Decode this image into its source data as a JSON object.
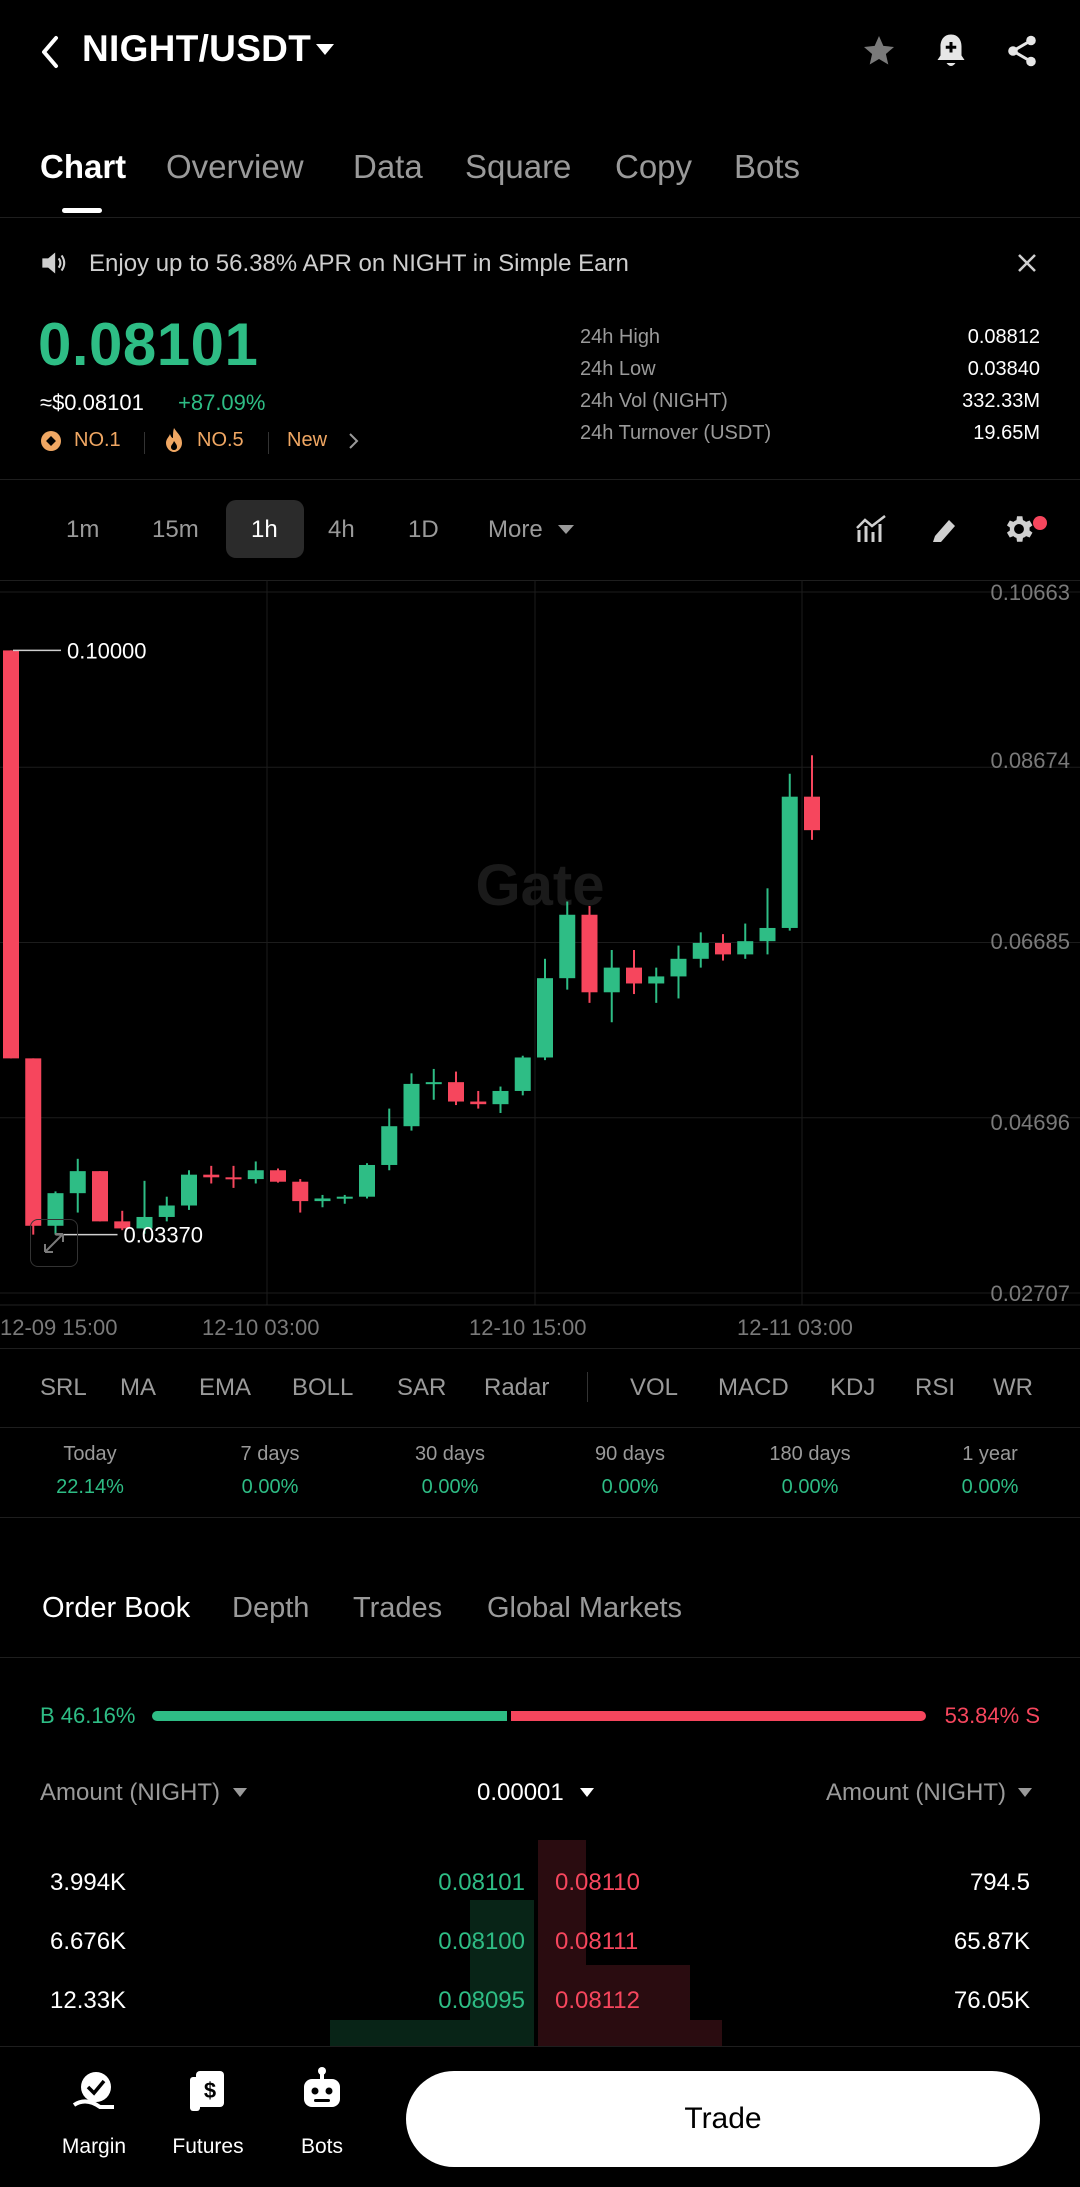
{
  "header": {
    "pair": "NIGHT/USDT"
  },
  "tabs": [
    "Chart",
    "Overview",
    "Data",
    "Square",
    "Copy",
    "Bots"
  ],
  "banner": {
    "text": "Enjoy up to 56.38% APR on NIGHT in Simple Earn"
  },
  "ticker": {
    "price": "0.08101",
    "usd_price": "≈$0.08101",
    "change": "+87.09%",
    "badge1": "NO.1",
    "badge2": "NO.5",
    "badge3": "New",
    "stats": [
      {
        "label": "24h High",
        "value": "0.08812"
      },
      {
        "label": "24h Low",
        "value": "0.03840"
      },
      {
        "label": "24h Vol (NIGHT)",
        "value": "332.33M"
      },
      {
        "label": "24h Turnover (USDT)",
        "value": "19.65M"
      }
    ]
  },
  "timeframes": [
    "1m",
    "15m",
    "1h",
    "4h",
    "1D",
    "More"
  ],
  "selected_timeframe": "1h",
  "chart_data": {
    "type": "candlestick",
    "y_ticks": [
      "0.10663",
      "0.08674",
      "0.06685",
      "0.04696",
      "0.02707"
    ],
    "x_ticks": [
      "12-09 15:00",
      "12-10 03:00",
      "12-10 15:00",
      "12-11 03:00"
    ],
    "ylim": [
      0.02707,
      0.10663
    ],
    "annotations": {
      "high": "0.10000",
      "low": "0.03370"
    },
    "watermark": "Gate",
    "candles": [
      [
        0.1,
        0.1,
        0.0537,
        0.0537
      ],
      [
        0.0537,
        0.0537,
        0.0337,
        0.0347
      ],
      [
        0.0347,
        0.0386,
        0.0337,
        0.0384
      ],
      [
        0.0384,
        0.0423,
        0.0362,
        0.0409
      ],
      [
        0.0409,
        0.0409,
        0.0352,
        0.0352
      ],
      [
        0.0352,
        0.0364,
        0.0342,
        0.0344
      ],
      [
        0.0344,
        0.0398,
        0.0338,
        0.0357
      ],
      [
        0.0357,
        0.038,
        0.0352,
        0.037
      ],
      [
        0.037,
        0.041,
        0.0365,
        0.0405
      ],
      [
        0.0405,
        0.0415,
        0.0395,
        0.0402
      ],
      [
        0.0402,
        0.0415,
        0.039,
        0.04
      ],
      [
        0.04,
        0.042,
        0.0395,
        0.041
      ],
      [
        0.041,
        0.0412,
        0.0396,
        0.0397
      ],
      [
        0.0397,
        0.04,
        0.0362,
        0.0375
      ],
      [
        0.0375,
        0.0382,
        0.0368,
        0.0378
      ],
      [
        0.0378,
        0.0382,
        0.0372,
        0.038
      ],
      [
        0.038,
        0.0418,
        0.0378,
        0.0416
      ],
      [
        0.0416,
        0.048,
        0.041,
        0.046
      ],
      [
        0.046,
        0.052,
        0.0455,
        0.0508
      ],
      [
        0.0508,
        0.0525,
        0.049,
        0.051
      ],
      [
        0.051,
        0.0522,
        0.0484,
        0.0488
      ],
      [
        0.0488,
        0.05,
        0.048,
        0.0485
      ],
      [
        0.0485,
        0.0505,
        0.0475,
        0.05
      ],
      [
        0.05,
        0.054,
        0.0495,
        0.0538
      ],
      [
        0.0538,
        0.065,
        0.0535,
        0.0628
      ],
      [
        0.0628,
        0.0715,
        0.0615,
        0.07
      ],
      [
        0.07,
        0.071,
        0.06,
        0.0612
      ],
      [
        0.0612,
        0.066,
        0.0578,
        0.064
      ],
      [
        0.064,
        0.066,
        0.061,
        0.0622
      ],
      [
        0.0622,
        0.064,
        0.06,
        0.063
      ],
      [
        0.063,
        0.0665,
        0.0605,
        0.065
      ],
      [
        0.065,
        0.068,
        0.064,
        0.0668
      ],
      [
        0.0668,
        0.0678,
        0.0648,
        0.0655
      ],
      [
        0.0655,
        0.069,
        0.065,
        0.067
      ],
      [
        0.067,
        0.073,
        0.0655,
        0.0685
      ],
      [
        0.0685,
        0.086,
        0.0682,
        0.0834
      ],
      [
        0.0834,
        0.0881,
        0.0785,
        0.0796
      ]
    ]
  },
  "indicators": [
    "SRL",
    "MA",
    "EMA",
    "BOLL",
    "SAR",
    "Radar",
    "VOL",
    "MACD",
    "KDJ",
    "RSI",
    "WR"
  ],
  "performance": [
    {
      "label": "Today",
      "value": "22.14%"
    },
    {
      "label": "7 days",
      "value": "0.00%"
    },
    {
      "label": "30 days",
      "value": "0.00%"
    },
    {
      "label": "90 days",
      "value": "0.00%"
    },
    {
      "label": "180 days",
      "value": "0.00%"
    },
    {
      "label": "1 year",
      "value": "0.00%"
    }
  ],
  "orderbook": {
    "tabs": [
      "Order Book",
      "Depth",
      "Trades",
      "Global Markets"
    ],
    "buy_ratio": "B 46.16%",
    "sell_ratio": "53.84% S",
    "buy_fraction": 0.4616,
    "header_left": "Amount (NIGHT)",
    "header_mid": "0.00001",
    "header_right": "Amount (NIGHT)",
    "rows": [
      {
        "bid_amt": "3.994K",
        "bid": "0.08101",
        "ask": "0.08110",
        "ask_amt": "794.5"
      },
      {
        "bid_amt": "6.676K",
        "bid": "0.08100",
        "ask": "0.08111",
        "ask_amt": "65.87K"
      },
      {
        "bid_amt": "12.33K",
        "bid": "0.08095",
        "ask": "0.08112",
        "ask_amt": "76.05K"
      }
    ]
  },
  "bottom_nav": {
    "margin": "Margin",
    "futures": "Futures",
    "bots": "Bots",
    "trade": "Trade"
  },
  "colors": {
    "up": "#2ebd85",
    "down": "#f6465d",
    "background": "#000000"
  }
}
